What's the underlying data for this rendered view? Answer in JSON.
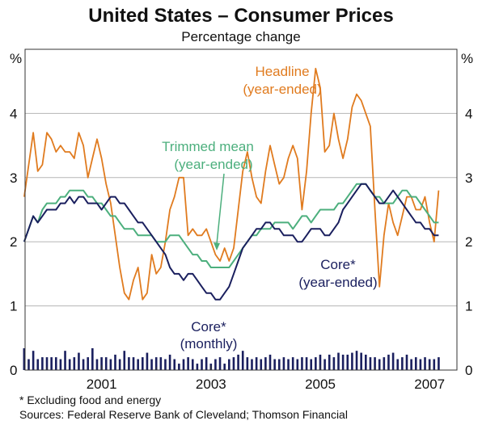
{
  "header": {
    "title": "United States – Consumer Prices",
    "subtitle": "Percentage change"
  },
  "footnotes": {
    "note": "*   Excluding food and energy",
    "sources": "Sources: Federal Reserve Bank of Cleveland; Thomson Financial"
  },
  "chart_data": {
    "type": "line",
    "title": "United States – Consumer Prices",
    "subtitle": "Percentage change",
    "y_unit_left": "%",
    "y_unit_right": "%",
    "ylim": [
      0,
      5
    ],
    "y_ticks": [
      0,
      1,
      2,
      3,
      4
    ],
    "x_range": [
      1999.6,
      2007.5
    ],
    "x_ticks": [
      2001,
      2003,
      2005,
      2007
    ],
    "grid": "horizontal",
    "annotations": {
      "headline": [
        "Headline",
        "(year-ended)"
      ],
      "trimmed": [
        "Trimmed mean",
        "(year-ended)"
      ],
      "core": [
        "Core*",
        "(year-ended)"
      ],
      "core_monthly": [
        "Core*",
        "(monthly)"
      ]
    },
    "colors": {
      "headline": "#e07b1f",
      "trimmed_mean": "#4caf7d",
      "core": "#1a1f5e",
      "core_monthly": "#1a1f5e",
      "grid": "#b5b5b5"
    },
    "series": [
      {
        "key": "headline",
        "name": "Headline (year-ended)",
        "start": 1999.583,
        "step": 0.08333,
        "values": [
          2.7,
          3.2,
          3.7,
          3.1,
          3.2,
          3.7,
          3.6,
          3.4,
          3.5,
          3.4,
          3.4,
          3.3,
          3.7,
          3.5,
          3.0,
          3.3,
          3.6,
          3.3,
          2.9,
          2.6,
          2.1,
          1.6,
          1.2,
          1.1,
          1.4,
          1.6,
          1.1,
          1.2,
          1.8,
          1.5,
          1.6,
          2.0,
          2.5,
          2.7,
          3.0,
          3.0,
          2.1,
          2.2,
          2.1,
          2.1,
          2.2,
          2.0,
          1.8,
          1.7,
          1.9,
          1.7,
          1.9,
          2.5,
          3.1,
          3.4,
          3.0,
          2.7,
          2.6,
          3.1,
          3.5,
          3.2,
          2.9,
          3.0,
          3.3,
          3.5,
          3.3,
          2.5,
          3.1,
          4.0,
          4.7,
          4.4,
          3.4,
          3.5,
          4.0,
          3.6,
          3.3,
          3.6,
          4.1,
          4.3,
          4.2,
          4.0,
          3.8,
          2.5,
          1.3,
          2.1,
          2.6,
          2.3,
          2.1,
          2.4,
          2.7,
          2.7,
          2.5,
          2.5,
          2.7,
          2.3,
          2.0,
          2.8
        ]
      },
      {
        "key": "trimmed_mean",
        "name": "Trimmed mean (year-ended)",
        "start": 1999.583,
        "step": 0.08333,
        "values": [
          2.0,
          2.2,
          2.4,
          2.3,
          2.5,
          2.6,
          2.6,
          2.6,
          2.7,
          2.7,
          2.8,
          2.8,
          2.8,
          2.8,
          2.7,
          2.7,
          2.6,
          2.6,
          2.5,
          2.4,
          2.4,
          2.3,
          2.2,
          2.2,
          2.2,
          2.1,
          2.1,
          2.1,
          2.1,
          2.0,
          2.0,
          2.0,
          2.1,
          2.1,
          2.1,
          2.0,
          1.9,
          1.8,
          1.8,
          1.7,
          1.7,
          1.6,
          1.6,
          1.6,
          1.6,
          1.6,
          1.7,
          1.8,
          1.9,
          2.0,
          2.1,
          2.1,
          2.2,
          2.2,
          2.2,
          2.3,
          2.3,
          2.3,
          2.3,
          2.2,
          2.3,
          2.4,
          2.4,
          2.3,
          2.4,
          2.5,
          2.5,
          2.5,
          2.5,
          2.6,
          2.6,
          2.7,
          2.8,
          2.9,
          2.9,
          2.9,
          2.8,
          2.7,
          2.7,
          2.6,
          2.6,
          2.6,
          2.7,
          2.8,
          2.8,
          2.7,
          2.7,
          2.6,
          2.5,
          2.4,
          2.3,
          2.3
        ]
      },
      {
        "key": "core",
        "name": "Core* (year-ended)",
        "start": 1999.583,
        "step": 0.08333,
        "values": [
          2.0,
          2.2,
          2.4,
          2.3,
          2.4,
          2.5,
          2.5,
          2.5,
          2.6,
          2.6,
          2.7,
          2.6,
          2.7,
          2.7,
          2.6,
          2.6,
          2.6,
          2.5,
          2.6,
          2.7,
          2.7,
          2.6,
          2.6,
          2.5,
          2.4,
          2.3,
          2.3,
          2.2,
          2.1,
          2.0,
          1.9,
          1.8,
          1.6,
          1.5,
          1.5,
          1.4,
          1.5,
          1.5,
          1.4,
          1.3,
          1.2,
          1.2,
          1.1,
          1.1,
          1.2,
          1.3,
          1.5,
          1.7,
          1.9,
          2.0,
          2.1,
          2.2,
          2.2,
          2.3,
          2.3,
          2.2,
          2.2,
          2.1,
          2.1,
          2.1,
          2.0,
          2.0,
          2.1,
          2.2,
          2.2,
          2.2,
          2.1,
          2.1,
          2.2,
          2.3,
          2.5,
          2.6,
          2.7,
          2.8,
          2.9,
          2.9,
          2.8,
          2.7,
          2.6,
          2.6,
          2.7,
          2.8,
          2.7,
          2.6,
          2.5,
          2.4,
          2.3,
          2.3,
          2.2,
          2.2,
          2.1,
          2.1
        ]
      },
      {
        "key": "core_monthly",
        "name": "Core* (monthly)",
        "type": "bar",
        "start": 1999.583,
        "step": 0.08333,
        "values": [
          0.34,
          0.17,
          0.3,
          0.17,
          0.2,
          0.2,
          0.2,
          0.2,
          0.17,
          0.3,
          0.17,
          0.2,
          0.27,
          0.17,
          0.2,
          0.34,
          0.17,
          0.2,
          0.2,
          0.17,
          0.24,
          0.17,
          0.3,
          0.2,
          0.2,
          0.17,
          0.2,
          0.27,
          0.17,
          0.2,
          0.2,
          0.17,
          0.24,
          0.17,
          0.1,
          0.17,
          0.2,
          0.17,
          0.1,
          0.17,
          0.2,
          0.1,
          0.17,
          0.2,
          0.1,
          0.17,
          0.2,
          0.24,
          0.3,
          0.2,
          0.17,
          0.2,
          0.17,
          0.2,
          0.24,
          0.17,
          0.17,
          0.2,
          0.17,
          0.2,
          0.17,
          0.2,
          0.2,
          0.17,
          0.2,
          0.24,
          0.17,
          0.24,
          0.2,
          0.27,
          0.24,
          0.24,
          0.27,
          0.3,
          0.27,
          0.24,
          0.2,
          0.2,
          0.17,
          0.2,
          0.24,
          0.27,
          0.17,
          0.2,
          0.24,
          0.17,
          0.2,
          0.17,
          0.2,
          0.17,
          0.17,
          0.2
        ]
      }
    ]
  }
}
